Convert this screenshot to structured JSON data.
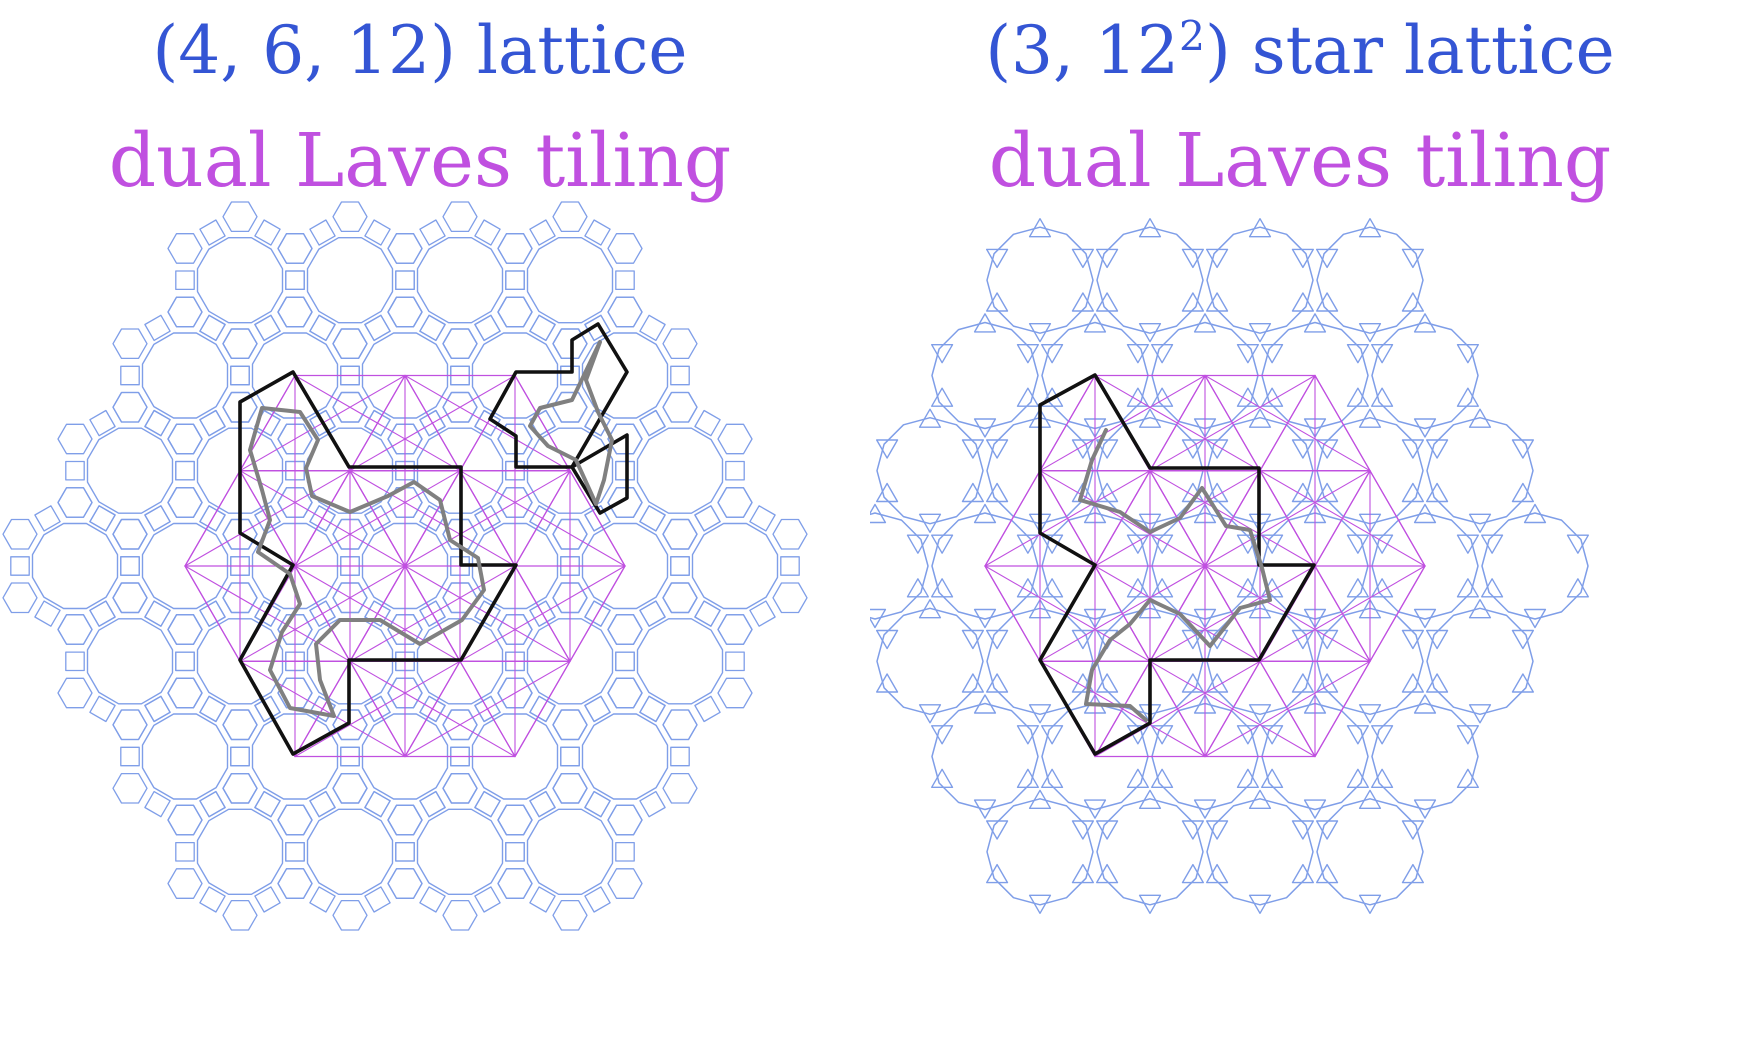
{
  "colors": {
    "lattice": "#7f9ee8",
    "title_lattice": "#3455d4",
    "dual": "#c050e0",
    "cluster": "#111111",
    "boundary_curve": "#808080"
  },
  "panels": [
    {
      "id": "left",
      "lattice_title": "(4, 6, 12) lattice",
      "dual_title": "dual Laves tiling"
    },
    {
      "id": "right",
      "lattice_title_base": "(3, 12",
      "lattice_title_exponent": "2",
      "lattice_title_suffix": ") star lattice",
      "dual_title": "dual Laves tiling"
    }
  ]
}
